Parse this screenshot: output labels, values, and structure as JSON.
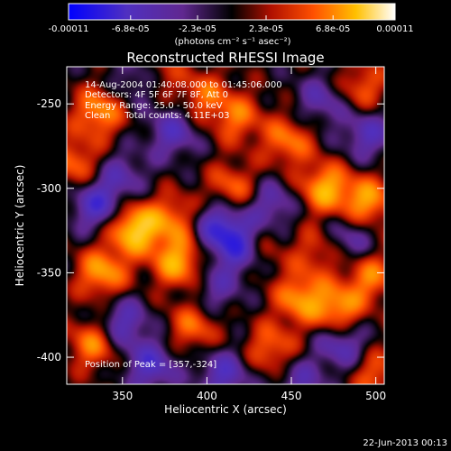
{
  "chart_data": {
    "type": "heatmap",
    "title": "Reconstructed RHESSI Image",
    "xlabel": "Heliocentric X (arcsec)",
    "ylabel": "Heliocentric Y (arcsec)",
    "xlim": [
      317,
      505
    ],
    "ylim": [
      -416,
      -228
    ],
    "x_ticks": [
      350,
      400,
      450,
      500
    ],
    "x_tick_labels": [
      "350",
      "400",
      "450",
      "500"
    ],
    "y_ticks": [
      -400,
      -350,
      -300,
      -250
    ],
    "y_tick_labels": [
      "-400",
      "-350",
      "-300",
      "-250"
    ],
    "colorbar": {
      "tick_labels": [
        "-0.00011",
        "-6.8e-05",
        "-2.3e-05",
        "2.3e-05",
        "6.8e-05",
        "0.00011"
      ],
      "units": "(photons cm⁻² s⁻¹ asec⁻²)",
      "range": [
        -0.00011,
        0.00011
      ]
    },
    "annotations": [
      "14-Aug-2004 01:40:08.000 to 01:45:06.000",
      "Detectors: 4F 5F 6F 7F 8F, Att 0",
      "Energy Range: 25.0 - 50.0 keV",
      "Clean     Total counts: 4.11E+03"
    ],
    "peak_label": "Position of Peak = [357,-324]",
    "peak_position": [
      357,
      -324
    ],
    "date_stamp": "22-Jun-2013 00:13",
    "sources": [
      {
        "x": 357,
        "y": -324,
        "amp": 1.0
      },
      {
        "x": 383,
        "y": -344,
        "amp": 0.8
      },
      {
        "x": 338,
        "y": -350,
        "amp": 0.75
      },
      {
        "x": 336,
        "y": -255,
        "amp": 0.7
      },
      {
        "x": 322,
        "y": -285,
        "amp": 0.55
      },
      {
        "x": 470,
        "y": -300,
        "amp": 0.8
      },
      {
        "x": 495,
        "y": -308,
        "amp": 0.75
      },
      {
        "x": 448,
        "y": -272,
        "amp": 0.6
      },
      {
        "x": 455,
        "y": -365,
        "amp": 0.7
      },
      {
        "x": 478,
        "y": -372,
        "amp": 0.75
      },
      {
        "x": 497,
        "y": -352,
        "amp": 0.6
      },
      {
        "x": 415,
        "y": -300,
        "amp": 0.55
      },
      {
        "x": 380,
        "y": -318,
        "amp": 0.55
      },
      {
        "x": 333,
        "y": -392,
        "amp": 0.65
      },
      {
        "x": 392,
        "y": -382,
        "amp": 0.55
      },
      {
        "x": 438,
        "y": -395,
        "amp": 0.55
      },
      {
        "x": 500,
        "y": -410,
        "amp": 0.5
      },
      {
        "x": 398,
        "y": -245,
        "amp": 0.5
      },
      {
        "x": 370,
        "y": -232,
        "amp": 0.45
      },
      {
        "x": 418,
        "y": -258,
        "amp": 0.55
      },
      {
        "x": 492,
        "y": -240,
        "amp": 0.5
      },
      {
        "x": 430,
        "y": -335,
        "amp": 0.45
      },
      {
        "x": 465,
        "y": -338,
        "amp": 0.4
      },
      {
        "x": 468,
        "y": -248,
        "amp": -0.45
      },
      {
        "x": 420,
        "y": -335,
        "amp": -0.85
      },
      {
        "x": 407,
        "y": -322,
        "amp": -0.7
      },
      {
        "x": 335,
        "y": -310,
        "amp": -0.7
      },
      {
        "x": 367,
        "y": -405,
        "amp": -0.65
      },
      {
        "x": 380,
        "y": -267,
        "amp": -0.55
      },
      {
        "x": 360,
        "y": -235,
        "amp": -0.5
      },
      {
        "x": 350,
        "y": -380,
        "amp": -0.6
      },
      {
        "x": 410,
        "y": -410,
        "amp": -0.6
      },
      {
        "x": 480,
        "y": -392,
        "amp": -0.6
      },
      {
        "x": 495,
        "y": -268,
        "amp": -0.55
      },
      {
        "x": 438,
        "y": -310,
        "amp": -0.5
      },
      {
        "x": 485,
        "y": -330,
        "amp": -0.45
      },
      {
        "x": 350,
        "y": -292,
        "amp": -0.4
      },
      {
        "x": 405,
        "y": -360,
        "amp": -0.4
      },
      {
        "x": 455,
        "y": -415,
        "amp": -0.45
      }
    ]
  }
}
